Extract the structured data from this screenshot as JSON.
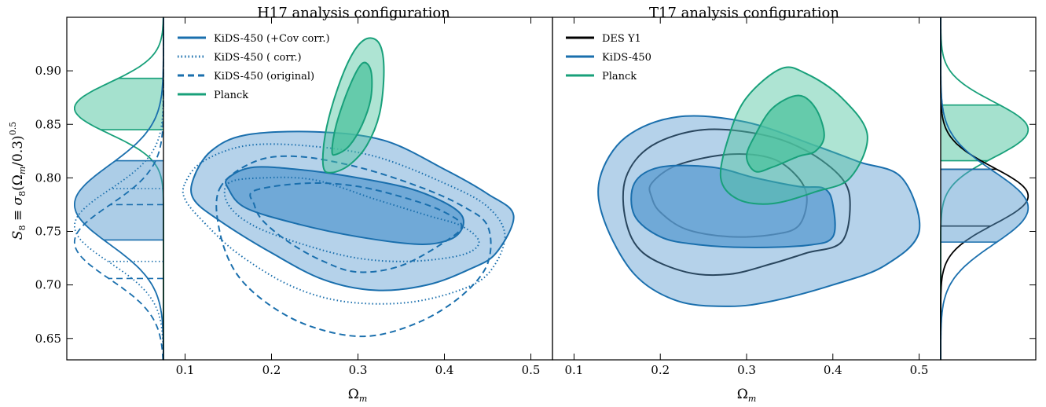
{
  "colors": {
    "kids": "#1a6fad",
    "kids_fill": "#5a9bd0",
    "planck": "#18a07a",
    "planck_fill": "#4cc39d",
    "des": "#000000"
  },
  "shared_y": {
    "label_math": "S_8 ≡ σ_8(Ω_m/0.3)^0.5",
    "ylim": [
      0.63,
      0.95
    ],
    "ticks": [
      "0.65",
      "0.70",
      "0.75",
      "0.80",
      "0.85",
      "0.90"
    ]
  },
  "x_axis": {
    "ticks": [
      "0.1",
      "0.2",
      "0.3",
      "0.4",
      "0.5"
    ]
  },
  "chart_data": [
    {
      "type": "scatter",
      "subtype": "marginal-posterior",
      "panel": "left-marginal",
      "axis": "S8",
      "series": [
        {
          "name": "Planck",
          "peak_S8": 0.865,
          "band68": [
            0.845,
            0.893
          ]
        },
        {
          "name": "KiDS-450 (θ+Cov corr.)",
          "peak_S8": 0.775,
          "band68": [
            0.742,
            0.816
          ]
        },
        {
          "name": "KiDS-450 (θ corr.)",
          "peak_S8": 0.755,
          "band68": [
            0.722,
            0.79
          ]
        },
        {
          "name": "KiDS-450 (original)",
          "peak_S8": 0.74,
          "band68": [
            0.706,
            0.775
          ]
        }
      ]
    },
    {
      "type": "scatter",
      "subtype": "contour",
      "panel": "H17",
      "title": "H17 analysis configuration",
      "xlabel": "Ω_m",
      "xlim": [
        0.075,
        0.525
      ],
      "ylim": [
        0.63,
        0.95
      ],
      "legend_position": "top-left",
      "series": [
        {
          "name": "KiDS-450 (θ+Cov corr.)",
          "style": "solid-filled",
          "contour68": [
            [
              0.15,
              0.8
            ],
            [
              0.18,
              0.81
            ],
            [
              0.24,
              0.807
            ],
            [
              0.3,
              0.8
            ],
            [
              0.36,
              0.79
            ],
            [
              0.4,
              0.777
            ],
            [
              0.42,
              0.765
            ],
            [
              0.42,
              0.752
            ],
            [
              0.405,
              0.742
            ],
            [
              0.37,
              0.738
            ],
            [
              0.3,
              0.745
            ],
            [
              0.23,
              0.757
            ],
            [
              0.17,
              0.772
            ],
            [
              0.15,
              0.79
            ]
          ],
          "contour95": [
            [
              0.11,
              0.8
            ],
            [
              0.13,
              0.825
            ],
            [
              0.17,
              0.84
            ],
            [
              0.25,
              0.843
            ],
            [
              0.33,
              0.835
            ],
            [
              0.4,
              0.808
            ],
            [
              0.45,
              0.785
            ],
            [
              0.48,
              0.765
            ],
            [
              0.46,
              0.73
            ],
            [
              0.43,
              0.715
            ],
            [
              0.38,
              0.7
            ],
            [
              0.32,
              0.695
            ],
            [
              0.26,
              0.705
            ],
            [
              0.2,
              0.73
            ],
            [
              0.14,
              0.76
            ],
            [
              0.11,
              0.78
            ]
          ]
        },
        {
          "name": "KiDS-450 (θ corr.)",
          "style": "dotted",
          "contour68": [
            [
              0.15,
              0.795
            ],
            [
              0.19,
              0.8
            ],
            [
              0.25,
              0.798
            ],
            [
              0.32,
              0.78
            ],
            [
              0.38,
              0.765
            ],
            [
              0.42,
              0.755
            ],
            [
              0.44,
              0.74
            ],
            [
              0.42,
              0.728
            ],
            [
              0.36,
              0.722
            ],
            [
              0.3,
              0.725
            ],
            [
              0.24,
              0.737
            ],
            [
              0.18,
              0.755
            ],
            [
              0.15,
              0.775
            ]
          ],
          "contour95": [
            [
              0.1,
              0.795
            ],
            [
              0.12,
              0.815
            ],
            [
              0.17,
              0.83
            ],
            [
              0.24,
              0.83
            ],
            [
              0.32,
              0.82
            ],
            [
              0.4,
              0.795
            ],
            [
              0.45,
              0.773
            ],
            [
              0.47,
              0.745
            ],
            [
              0.45,
              0.71
            ],
            [
              0.41,
              0.693
            ],
            [
              0.35,
              0.683
            ],
            [
              0.28,
              0.685
            ],
            [
              0.22,
              0.7
            ],
            [
              0.16,
              0.73
            ],
            [
              0.12,
              0.76
            ],
            [
              0.1,
              0.78
            ]
          ]
        },
        {
          "name": "KiDS-450 (original)",
          "style": "dashed",
          "contour68": [
            [
              0.18,
              0.788
            ],
            [
              0.24,
              0.795
            ],
            [
              0.3,
              0.792
            ],
            [
              0.36,
              0.78
            ],
            [
              0.4,
              0.768
            ],
            [
              0.42,
              0.755
            ],
            [
              0.4,
              0.74
            ],
            [
              0.35,
              0.718
            ],
            [
              0.3,
              0.712
            ],
            [
              0.26,
              0.722
            ],
            [
              0.22,
              0.74
            ],
            [
              0.19,
              0.76
            ],
            [
              0.18,
              0.775
            ]
          ],
          "contour95": [
            [
              0.14,
              0.79
            ],
            [
              0.18,
              0.815
            ],
            [
              0.23,
              0.82
            ],
            [
              0.3,
              0.81
            ],
            [
              0.37,
              0.792
            ],
            [
              0.42,
              0.774
            ],
            [
              0.45,
              0.755
            ],
            [
              0.45,
              0.72
            ],
            [
              0.42,
              0.69
            ],
            [
              0.37,
              0.665
            ],
            [
              0.31,
              0.652
            ],
            [
              0.25,
              0.66
            ],
            [
              0.2,
              0.68
            ],
            [
              0.16,
              0.71
            ],
            [
              0.14,
              0.75
            ]
          ]
        },
        {
          "name": "Planck",
          "style": "solid-filled",
          "contour68": [
            [
              0.27,
              0.825
            ],
            [
              0.275,
              0.85
            ],
            [
              0.29,
              0.885
            ],
            [
              0.305,
              0.907
            ],
            [
              0.315,
              0.9
            ],
            [
              0.315,
              0.875
            ],
            [
              0.305,
              0.85
            ],
            [
              0.29,
              0.83
            ],
            [
              0.275,
              0.822
            ]
          ],
          "contour95": [
            [
              0.26,
              0.81
            ],
            [
              0.262,
              0.84
            ],
            [
              0.275,
              0.88
            ],
            [
              0.293,
              0.915
            ],
            [
              0.31,
              0.93
            ],
            [
              0.325,
              0.925
            ],
            [
              0.33,
              0.9
            ],
            [
              0.325,
              0.86
            ],
            [
              0.31,
              0.83
            ],
            [
              0.29,
              0.812
            ],
            [
              0.27,
              0.805
            ]
          ]
        }
      ]
    },
    {
      "type": "scatter",
      "subtype": "contour",
      "panel": "T17",
      "title": "T17 analysis configuration",
      "xlabel": "Ω_m",
      "xlim": [
        0.075,
        0.525
      ],
      "ylim": [
        0.63,
        0.95
      ],
      "legend_position": "top-left",
      "series": [
        {
          "name": "DES Y1",
          "style": "solid-line",
          "contour68": [
            [
              0.19,
              0.795
            ],
            [
              0.22,
              0.812
            ],
            [
              0.28,
              0.822
            ],
            [
              0.33,
              0.818
            ],
            [
              0.36,
              0.8
            ],
            [
              0.37,
              0.78
            ],
            [
              0.36,
              0.755
            ],
            [
              0.33,
              0.747
            ],
            [
              0.28,
              0.745
            ],
            [
              0.23,
              0.752
            ],
            [
              0.2,
              0.768
            ],
            [
              0.19,
              0.782
            ]
          ],
          "contour95": [
            [
              0.16,
              0.8
            ],
            [
              0.19,
              0.83
            ],
            [
              0.25,
              0.845
            ],
            [
              0.32,
              0.84
            ],
            [
              0.37,
              0.825
            ],
            [
              0.41,
              0.8
            ],
            [
              0.42,
              0.775
            ],
            [
              0.41,
              0.74
            ],
            [
              0.37,
              0.73
            ],
            [
              0.33,
              0.72
            ],
            [
              0.28,
              0.71
            ],
            [
              0.23,
              0.712
            ],
            [
              0.18,
              0.73
            ],
            [
              0.16,
              0.76
            ]
          ]
        },
        {
          "name": "KiDS-450",
          "style": "solid-filled",
          "contour68": [
            [
              0.17,
              0.795
            ],
            [
              0.2,
              0.81
            ],
            [
              0.26,
              0.81
            ],
            [
              0.31,
              0.8
            ],
            [
              0.36,
              0.792
            ],
            [
              0.39,
              0.79
            ],
            [
              0.4,
              0.775
            ],
            [
              0.4,
              0.745
            ],
            [
              0.37,
              0.737
            ],
            [
              0.3,
              0.735
            ],
            [
              0.24,
              0.738
            ],
            [
              0.2,
              0.745
            ],
            [
              0.17,
              0.765
            ]
          ],
          "contour95": [
            [
              0.13,
              0.8
            ],
            [
              0.16,
              0.838
            ],
            [
              0.22,
              0.857
            ],
            [
              0.3,
              0.852
            ],
            [
              0.38,
              0.83
            ],
            [
              0.43,
              0.815
            ],
            [
              0.48,
              0.8
            ],
            [
              0.5,
              0.75
            ],
            [
              0.46,
              0.718
            ],
            [
              0.4,
              0.7
            ],
            [
              0.33,
              0.685
            ],
            [
              0.28,
              0.68
            ],
            [
              0.22,
              0.685
            ],
            [
              0.17,
              0.71
            ],
            [
              0.135,
              0.76
            ]
          ]
        },
        {
          "name": "Planck",
          "style": "solid-filled",
          "contour68": [
            [
              0.3,
              0.82
            ],
            [
              0.31,
              0.84
            ],
            [
              0.33,
              0.865
            ],
            [
              0.36,
              0.877
            ],
            [
              0.38,
              0.865
            ],
            [
              0.39,
              0.84
            ],
            [
              0.38,
              0.825
            ],
            [
              0.36,
              0.82
            ],
            [
              0.33,
              0.81
            ],
            [
              0.31,
              0.806
            ]
          ],
          "contour95": [
            [
              0.27,
              0.8
            ],
            [
              0.28,
              0.84
            ],
            [
              0.3,
              0.875
            ],
            [
              0.34,
              0.902
            ],
            [
              0.37,
              0.897
            ],
            [
              0.41,
              0.875
            ],
            [
              0.44,
              0.84
            ],
            [
              0.42,
              0.8
            ],
            [
              0.38,
              0.787
            ],
            [
              0.33,
              0.776
            ],
            [
              0.29,
              0.78
            ]
          ]
        }
      ]
    },
    {
      "type": "scatter",
      "subtype": "marginal-posterior",
      "panel": "right-marginal",
      "axis": "S8",
      "series": [
        {
          "name": "Planck",
          "peak_S8": 0.845,
          "band68": [
            0.816,
            0.868
          ]
        },
        {
          "name": "DES Y1",
          "peak_S8": 0.783,
          "band68": [
            0.755,
            0.808
          ]
        },
        {
          "name": "KiDS-450",
          "peak_S8": 0.772,
          "band68": [
            0.74,
            0.808
          ]
        }
      ]
    }
  ],
  "legend_left": {
    "entries": [
      {
        "label_html": "KiDS-450 (<i>θ</i>+Cov corr.)",
        "style": "solid"
      },
      {
        "label_html": "KiDS-450 (<i>θ</i> corr.)",
        "style": "dotted"
      },
      {
        "label_html": "KiDS-450 (original)",
        "style": "dashed"
      },
      {
        "label_html": "Planck",
        "style": "planck"
      }
    ]
  },
  "legend_right": {
    "entries": [
      {
        "label": "DES Y1",
        "style": "des"
      },
      {
        "label": "KiDS-450",
        "style": "kids"
      },
      {
        "label": "Planck",
        "style": "planck"
      }
    ]
  }
}
